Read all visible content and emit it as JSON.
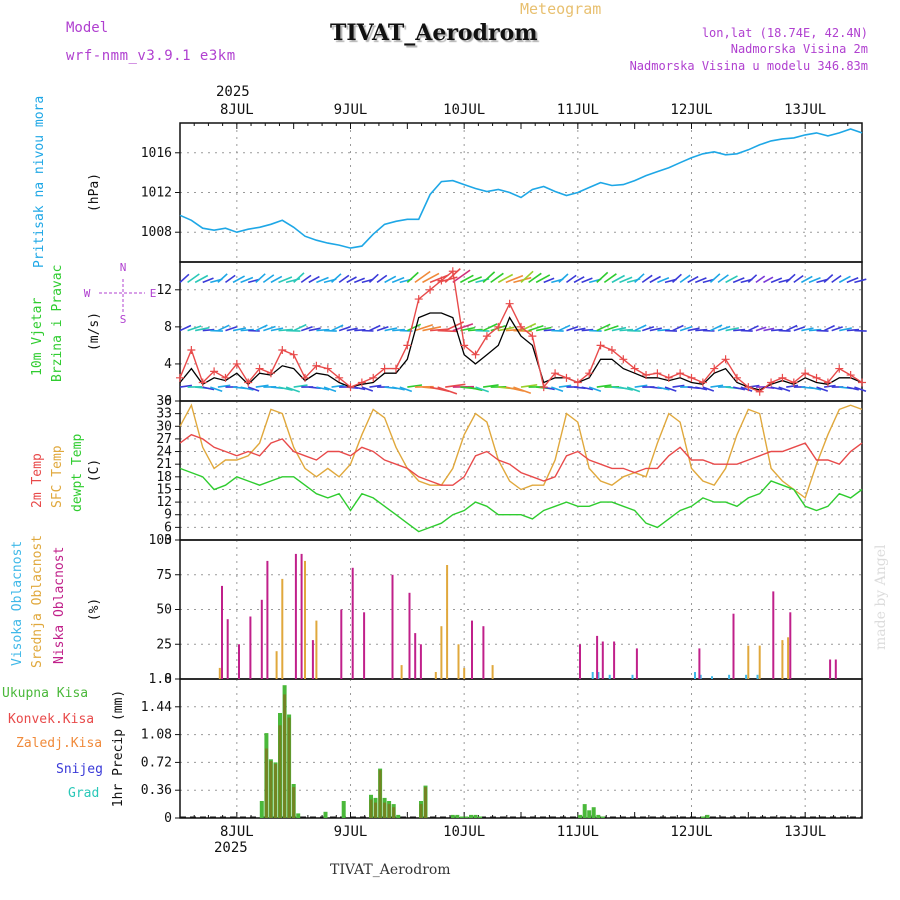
{
  "header": {
    "model_label": "Model",
    "model_name": "wrf-nmm_v3.9.1 e3km",
    "meteogram_label": "Meteogram",
    "station_title": "TIVAT_Aerodrom",
    "lonlat": "lon,lat (18.74E, 42.4N)",
    "altitude": "Nadmorska Visina 2m",
    "model_altitude": "Nadmorska Visina u modelu 346.83m",
    "footer_station": "TIVAT_Aerodrom",
    "watermark": "made by Angel",
    "year_top": "2025",
    "year_bottom": "2025"
  },
  "colors": {
    "pressure": "#1ea7e6",
    "temp2m": "#e84a4a",
    "sfc": "#e0a83c",
    "dewpt": "#2fcc2f",
    "wind_speed": "#e84a4a",
    "wind_avg": "#000000",
    "high_cloud": "#3fb8e8",
    "mid_cloud": "#e0a83c",
    "low_cloud": "#c0208a",
    "total_precip": "#4ab83a",
    "conv_precip": "#e84a4a",
    "frz_precip": "#f08a3a",
    "snow": "#3a3ad8",
    "hail": "#2ac8b8",
    "magenta_text": "#b040d0"
  },
  "chart_data": [
    {
      "id": "pressure",
      "type": "line",
      "ylabel": "(hPa)",
      "title_left": "Pritisak na nivou mora",
      "ylim": [
        1005,
        1019
      ],
      "yticks": [
        1008,
        1012,
        1016
      ],
      "x": [
        0,
        0.1,
        0.2,
        0.3,
        0.4,
        0.5,
        0.6,
        0.7,
        0.8,
        0.9,
        1.0,
        1.1,
        1.2,
        1.3,
        1.4,
        1.5,
        1.6,
        1.7,
        1.8,
        1.9,
        2.0,
        2.1,
        2.2,
        2.3,
        2.4,
        2.5,
        2.6,
        2.7,
        2.8,
        2.9,
        3.0,
        3.1,
        3.2,
        3.3,
        3.4,
        3.5,
        3.6,
        3.7,
        3.8,
        3.9,
        4.0,
        4.1,
        4.2,
        4.3,
        4.4,
        4.5,
        4.6,
        4.7,
        4.8,
        4.9,
        5.0,
        5.1,
        5.2,
        5.3,
        5.4,
        5.5,
        5.6,
        5.7,
        5.8,
        5.9,
        6.0
      ],
      "values": [
        1009.7,
        1009.2,
        1008.4,
        1008.2,
        1008.4,
        1008.0,
        1008.3,
        1008.5,
        1008.8,
        1009.2,
        1008.5,
        1007.6,
        1007.2,
        1006.9,
        1006.7,
        1006.4,
        1006.6,
        1007.8,
        1008.8,
        1009.1,
        1009.3,
        1009.3,
        1011.8,
        1013.1,
        1013.2,
        1012.8,
        1012.4,
        1012.1,
        1012.3,
        1012.0,
        1011.5,
        1012.3,
        1012.6,
        1012.1,
        1011.7,
        1012.0,
        1012.5,
        1013.0,
        1012.7,
        1012.8,
        1013.2,
        1013.7,
        1014.1,
        1014.5,
        1015.0,
        1015.5,
        1015.9,
        1016.1,
        1015.8,
        1015.9,
        1016.3,
        1016.8,
        1017.2,
        1017.4,
        1017.5,
        1017.8,
        1018.0,
        1017.7,
        1018.0,
        1018.4,
        1018.0
      ]
    },
    {
      "id": "wind",
      "type": "line",
      "ylabel": "(m/s)",
      "title_left": [
        "10m Vjetar",
        "Brzina i Pravac"
      ],
      "compass": {
        "n": "N",
        "s": "S",
        "w": "W",
        "e": "E"
      },
      "ylim": [
        0,
        15
      ],
      "yticks": [
        0,
        4,
        8,
        12
      ],
      "x": [
        0,
        0.1,
        0.2,
        0.3,
        0.4,
        0.5,
        0.6,
        0.7,
        0.8,
        0.9,
        1.0,
        1.1,
        1.2,
        1.3,
        1.4,
        1.5,
        1.6,
        1.7,
        1.8,
        1.9,
        2.0,
        2.1,
        2.2,
        2.3,
        2.4,
        2.5,
        2.6,
        2.7,
        2.8,
        2.9,
        3.0,
        3.1,
        3.2,
        3.3,
        3.4,
        3.5,
        3.6,
        3.7,
        3.8,
        3.9,
        4.0,
        4.1,
        4.2,
        4.3,
        4.4,
        4.5,
        4.6,
        4.7,
        4.8,
        4.9,
        5.0,
        5.1,
        5.2,
        5.3,
        5.4,
        5.5,
        5.6,
        5.7,
        5.8,
        5.9,
        6.0
      ],
      "series": [
        {
          "name": "speed",
          "values": [
            2.5,
            5.5,
            2.0,
            3.2,
            2.5,
            4.0,
            2.0,
            3.5,
            3.0,
            5.5,
            5.0,
            2.5,
            3.8,
            3.5,
            2.5,
            1.5,
            2.0,
            2.5,
            3.5,
            3.5,
            6.0,
            11.0,
            12.0,
            13.0,
            14.0,
            6.0,
            5.0,
            7.0,
            8.0,
            10.5,
            8.0,
            7.0,
            1.5,
            3.0,
            2.5,
            2.0,
            3.0,
            6.0,
            5.5,
            4.5,
            3.5,
            2.8,
            3.0,
            2.5,
            3.0,
            2.5,
            2.0,
            3.5,
            4.5,
            2.5,
            1.5,
            1.0,
            2.0,
            2.5,
            2.0,
            3.0,
            2.5,
            2.0,
            3.5,
            2.8,
            2.0
          ]
        },
        {
          "name": "mean",
          "values": [
            2.0,
            3.5,
            1.8,
            2.5,
            2.2,
            3.0,
            1.8,
            3.0,
            2.8,
            3.8,
            3.5,
            2.2,
            3.0,
            2.8,
            2.0,
            1.5,
            1.8,
            2.0,
            3.0,
            3.0,
            4.5,
            9.0,
            9.5,
            9.5,
            9.0,
            5.0,
            4.0,
            5.0,
            6.0,
            9.0,
            7.0,
            6.0,
            2.0,
            2.5,
            2.5,
            2.0,
            2.5,
            4.5,
            4.5,
            3.5,
            3.0,
            2.5,
            2.5,
            2.2,
            2.5,
            2.0,
            1.8,
            3.0,
            3.5,
            2.0,
            1.5,
            1.2,
            1.8,
            2.2,
            1.8,
            2.5,
            2.0,
            1.8,
            2.5,
            2.5,
            2.0
          ]
        }
      ],
      "barb_rows": [
        12.8,
        7.6,
        1.5
      ]
    },
    {
      "id": "temperature",
      "type": "line",
      "ylabel": "(C)",
      "title_left": [
        "2m Temp",
        "SFC Temp",
        "dewpt Temp"
      ],
      "ylim": [
        3,
        36
      ],
      "yticks": [
        3,
        6,
        9,
        12,
        15,
        18,
        21,
        24,
        27,
        30,
        33,
        36
      ],
      "x": [
        0,
        0.1,
        0.2,
        0.3,
        0.4,
        0.5,
        0.6,
        0.7,
        0.8,
        0.9,
        1.0,
        1.1,
        1.2,
        1.3,
        1.4,
        1.5,
        1.6,
        1.7,
        1.8,
        1.9,
        2.0,
        2.1,
        2.2,
        2.3,
        2.4,
        2.5,
        2.6,
        2.7,
        2.8,
        2.9,
        3.0,
        3.1,
        3.2,
        3.3,
        3.4,
        3.5,
        3.6,
        3.7,
        3.8,
        3.9,
        4.0,
        4.1,
        4.2,
        4.3,
        4.4,
        4.5,
        4.6,
        4.7,
        4.8,
        4.9,
        5.0,
        5.1,
        5.2,
        5.3,
        5.4,
        5.5,
        5.6,
        5.7,
        5.8,
        5.9,
        6.0
      ],
      "series": [
        {
          "name": "2m Temp",
          "values": [
            26,
            28,
            27,
            25,
            24,
            23,
            24,
            23,
            26,
            27,
            24,
            23,
            22,
            24,
            24,
            23,
            25,
            24,
            22,
            21,
            20,
            18,
            17,
            16,
            16,
            18,
            23,
            24,
            22,
            21,
            19,
            18,
            17,
            18,
            23,
            24,
            22,
            21,
            20,
            20,
            19,
            20,
            20,
            23,
            25,
            22,
            22,
            21,
            21,
            21,
            22,
            23,
            24,
            24,
            25,
            26,
            22,
            22,
            21,
            24,
            26
          ]
        },
        {
          "name": "SFC Temp",
          "values": [
            30,
            35,
            25,
            20,
            22,
            22,
            23,
            26,
            34,
            33,
            25,
            20,
            18,
            20,
            18,
            21,
            28,
            34,
            32,
            25,
            20,
            17,
            16,
            16,
            20,
            28,
            33,
            31,
            22,
            17,
            15,
            16,
            16,
            22,
            33,
            31,
            20,
            17,
            16,
            18,
            19,
            18,
            26,
            33,
            31,
            20,
            17,
            16,
            20,
            28,
            34,
            33,
            20,
            17,
            15,
            13,
            21,
            28,
            34,
            35,
            34
          ]
        },
        {
          "name": "dewpt Temp",
          "values": [
            20,
            19,
            18,
            15,
            16,
            18,
            17,
            16,
            17,
            18,
            18,
            16,
            14,
            13,
            14,
            10,
            14,
            13,
            11,
            9,
            7,
            5,
            6,
            7,
            9,
            10,
            12,
            11,
            9,
            9,
            9,
            8,
            10,
            11,
            12,
            11,
            11,
            12,
            12,
            11,
            10,
            7,
            6,
            8,
            10,
            11,
            13,
            12,
            12,
            11,
            13,
            14,
            17,
            16,
            15,
            11,
            10,
            11,
            14,
            13,
            15
          ]
        }
      ]
    },
    {
      "id": "clouds",
      "type": "bar",
      "ylabel": "(%)",
      "title_left": [
        "Visoka Oblacnost",
        "Srednja Oblacnost",
        "Niska Oblacnost"
      ],
      "ylim": [
        0,
        100
      ],
      "yticks": [
        0,
        25,
        50,
        75,
        100
      ],
      "x": [
        0.35,
        0.4,
        0.5,
        0.6,
        0.7,
        0.75,
        0.85,
        0.9,
        1.0,
        1.05,
        1.1,
        1.15,
        1.2,
        1.25,
        1.3,
        1.4,
        1.45,
        1.5,
        1.6,
        1.85,
        1.95,
        2.0,
        2.05,
        2.1,
        2.25,
        2.3,
        2.35,
        2.45,
        2.5,
        2.55,
        2.65,
        2.75,
        2.85,
        2.9,
        3.5,
        3.65,
        3.7,
        3.8,
        4.0,
        4.55,
        4.6,
        4.7,
        4.75,
        4.85,
        5.0,
        5.1,
        5.2,
        5.3,
        5.35,
        5.7,
        5.75,
        5.95
      ],
      "series": [
        {
          "name": "Visoka Oblacnost",
          "values": [
            0,
            0,
            0,
            0,
            0,
            0,
            0,
            0,
            0,
            0,
            0,
            0,
            0,
            0,
            0,
            0,
            0,
            0,
            0,
            0,
            0,
            0,
            0,
            0,
            0,
            0,
            0,
            0,
            0,
            0,
            0,
            0,
            0,
            0,
            0,
            5,
            5,
            3,
            3,
            5,
            3,
            2,
            0,
            3,
            3,
            3,
            0,
            0,
            0,
            0,
            0,
            0
          ]
        },
        {
          "name": "Srednja Oblacnost",
          "values": [
            8,
            0,
            0,
            0,
            0,
            0,
            20,
            72,
            0,
            0,
            85,
            0,
            42,
            0,
            0,
            0,
            0,
            0,
            0,
            0,
            10,
            0,
            0,
            0,
            5,
            38,
            82,
            25,
            8,
            0,
            0,
            10,
            0,
            0,
            0,
            0,
            0,
            0,
            0,
            0,
            0,
            0,
            0,
            0,
            24,
            24,
            0,
            28,
            30,
            0,
            0,
            0
          ]
        },
        {
          "name": "Niska Oblacnost",
          "values": [
            67,
            43,
            25,
            45,
            57,
            85,
            0,
            0,
            90,
            90,
            0,
            28,
            0,
            0,
            0,
            50,
            0,
            80,
            48,
            75,
            0,
            62,
            33,
            25,
            0,
            0,
            0,
            0,
            0,
            42,
            38,
            0,
            0,
            0,
            25,
            31,
            27,
            27,
            22,
            22,
            0,
            0,
            0,
            47,
            0,
            0,
            63,
            0,
            48,
            14,
            14,
            0
          ]
        }
      ]
    },
    {
      "id": "precip",
      "type": "bar",
      "ylabel": "1hr Precip (mm)",
      "title_left": [
        "Ukupna Kisa",
        "Konvek.Kisa",
        "Zaledj.Kisa",
        "Snijeg",
        "Grad"
      ],
      "ylim": [
        0,
        1.8
      ],
      "yticks": [
        0,
        0.36,
        0.72,
        1.08,
        1.44,
        1.8
      ],
      "ytick_labels": [
        "0",
        "0.36",
        "0.72",
        "1.08",
        "1.44",
        "1.8"
      ],
      "x": [
        0.72,
        0.76,
        0.8,
        0.84,
        0.88,
        0.92,
        0.96,
        1.0,
        1.04,
        1.28,
        1.44,
        1.68,
        1.72,
        1.76,
        1.8,
        1.84,
        1.88,
        1.92,
        2.12,
        2.16,
        2.4,
        2.44,
        2.48,
        2.52,
        2.56,
        2.6,
        2.64,
        3.52,
        3.56,
        3.6,
        3.64,
        3.68,
        3.72,
        4.6,
        4.64
      ],
      "series": [
        {
          "name": "Ukupna Kisa",
          "values": [
            0.22,
            1.1,
            0.76,
            0.72,
            1.36,
            1.72,
            1.34,
            0.44,
            0.06,
            0.08,
            0.22,
            0.3,
            0.26,
            0.64,
            0.26,
            0.22,
            0.18,
            0.04,
            0.22,
            0.42,
            0.04,
            0.04,
            0.02,
            0.02,
            0.04,
            0.04,
            0.02,
            0.04,
            0.18,
            0.1,
            0.14,
            0.04,
            0.02,
            0.02,
            0.04
          ]
        },
        {
          "name": "Konvek.Kisa",
          "values": [
            0,
            0.9,
            0.74,
            0.7,
            1.2,
            1.6,
            1.3,
            0.4,
            0,
            0,
            0,
            0.24,
            0.2,
            0.62,
            0.2,
            0.18,
            0.14,
            0,
            0.18,
            0.4,
            0,
            0,
            0,
            0,
            0,
            0,
            0,
            0,
            0,
            0,
            0,
            0,
            0,
            0,
            0
          ]
        }
      ]
    }
  ],
  "days": {
    "labels": [
      "8JUL",
      "9JUL",
      "10JUL",
      "11JUL",
      "12JUL",
      "13JUL"
    ],
    "positions": [
      0.5,
      1.5,
      2.5,
      3.5,
      4.5,
      5.5
    ]
  }
}
